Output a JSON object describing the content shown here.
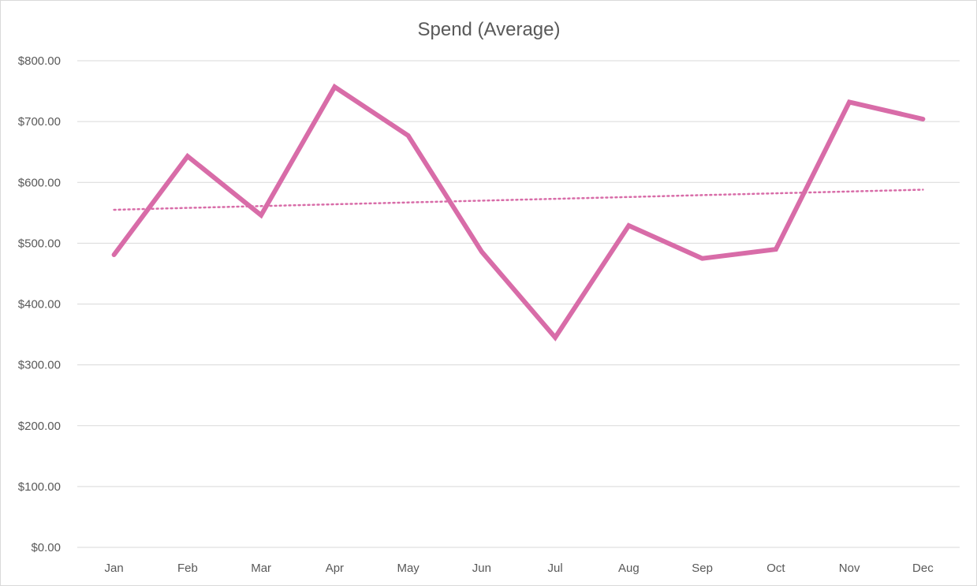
{
  "chart_data": {
    "type": "line",
    "title": "Spend (Average)",
    "xlabel": "",
    "ylabel": "",
    "categories": [
      "Jan",
      "Feb",
      "Mar",
      "Apr",
      "May",
      "Jun",
      "Jul",
      "Aug",
      "Sep",
      "Oct",
      "Nov",
      "Dec"
    ],
    "series": [
      {
        "values": [
          481,
          643,
          546,
          757,
          677,
          486,
          345,
          529,
          475,
          490,
          732,
          704
        ],
        "color": "#d86ca8"
      }
    ],
    "trendline": {
      "type": "linear",
      "style": "dotted",
      "color": "#d86ca8",
      "values": [
        555,
        558,
        561,
        564,
        567,
        570,
        573,
        576,
        579,
        582,
        585,
        588
      ]
    },
    "ylim": [
      0,
      800
    ],
    "yticks": [
      0,
      100,
      200,
      300,
      400,
      500,
      600,
      700,
      800
    ],
    "ytick_labels": [
      "$0.00",
      "$100.00",
      "$200.00",
      "$300.00",
      "$400.00",
      "$500.00",
      "$600.00",
      "$700.00",
      "$800.00"
    ],
    "grid": true,
    "legend": "none"
  }
}
